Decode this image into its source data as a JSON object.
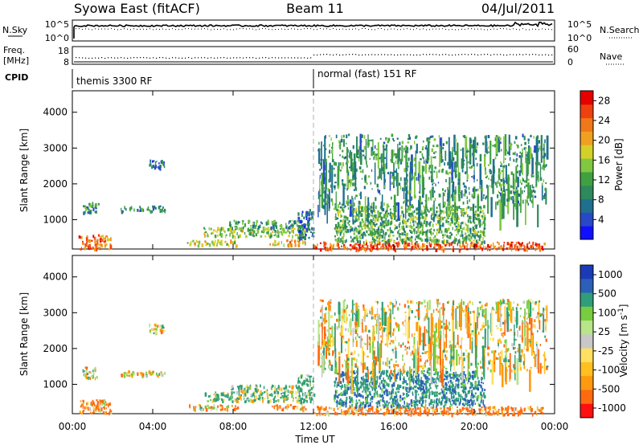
{
  "header": {
    "left_title": "Syowa East (fitACF)",
    "center_title": "Beam 11",
    "right_title": "04/Jul/2011"
  },
  "noise_panel": {
    "left_label": "N.Sky",
    "left_ticks": [
      "10^5",
      "10^0"
    ],
    "right_label": "N.Search",
    "right_ticks": [
      "10^5",
      "10^0"
    ],
    "right_legend_style": "dotted"
  },
  "freq_panel": {
    "left_label_1": "Freq.",
    "left_label_2": "[MHz]",
    "left_ticks": [
      "18",
      "8"
    ],
    "right_label": "Nave",
    "right_ticks": [
      "60",
      "0"
    ],
    "right_legend_style": "dotted"
  },
  "cpid_panel": {
    "label": "CPID",
    "segments": [
      "themis 3300 RF",
      "normal (fast) 151 RF"
    ]
  },
  "colors": {
    "power_scale": [
      "#1010ff",
      "#2848c8",
      "#1f6f8f",
      "#2e8a5c",
      "#3fa040",
      "#7fc840",
      "#d4d02a",
      "#f0a020",
      "#f07818",
      "#ef4010",
      "#e60000"
    ],
    "velocity_scale": [
      "#ff1010",
      "#ff6a10",
      "#ff9a10",
      "#ffc020",
      "#ffe060",
      "#c8c8c8",
      "#b8e48a",
      "#78cc40",
      "#2f9e7a",
      "#2c5fb8",
      "#1b3ab8"
    ],
    "ground_scatter": "#a0a0a0"
  },
  "chart_data": [
    {
      "type": "heatmap",
      "title": "Power",
      "xlabel": "Time UT",
      "ylabel": "Slant Range [km]",
      "x_tick_labels": [
        "00:00",
        "04:00",
        "08:00",
        "12:00",
        "16:00",
        "20:00",
        "00:00"
      ],
      "y_ticks": [
        1000,
        2000,
        3000,
        4000
      ],
      "xlim": [
        0,
        24
      ],
      "ylim": [
        180,
        4600
      ],
      "colorbar": {
        "label": "Power [dB]",
        "ticks": [
          4,
          8,
          12,
          16,
          20,
          24,
          28
        ],
        "range": [
          0,
          30
        ]
      },
      "mode_change_time": 12.0,
      "regions": [
        {
          "t0": 0.3,
          "t1": 1.9,
          "r0": 200,
          "r1": 600,
          "value": 24
        },
        {
          "t0": 0.5,
          "t1": 1.3,
          "r0": 1200,
          "r1": 1500,
          "value": 10
        },
        {
          "t0": 2.4,
          "t1": 4.6,
          "r0": 1250,
          "r1": 1400,
          "value": 8
        },
        {
          "t0": 3.8,
          "t1": 4.6,
          "r0": 2450,
          "r1": 2700,
          "value": 6
        },
        {
          "t0": 5.7,
          "t1": 8.2,
          "r0": 300,
          "r1": 450,
          "value": 18
        },
        {
          "t0": 6.5,
          "t1": 11.6,
          "r0": 550,
          "r1": 800,
          "value": 14
        },
        {
          "t0": 7.8,
          "t1": 11.4,
          "r0": 800,
          "r1": 1000,
          "value": 10
        },
        {
          "t0": 9.8,
          "t1": 11.6,
          "r0": 300,
          "r1": 450,
          "value": 20
        },
        {
          "t0": 11.2,
          "t1": 12.0,
          "r0": 500,
          "r1": 1300,
          "value": 6
        },
        {
          "t0": 12.0,
          "t1": 23.5,
          "r0": 180,
          "r1": 400,
          "value": 26
        },
        {
          "t0": 13.0,
          "t1": 20.5,
          "r0": 400,
          "r1": 1400,
          "value": 12
        },
        {
          "t0": 12.2,
          "t1": 23.6,
          "r0": 1400,
          "r1": 3400,
          "value": 10
        }
      ]
    },
    {
      "type": "heatmap",
      "title": "Velocity",
      "xlabel": "Time UT",
      "ylabel": "Slant Range [km]",
      "x_tick_labels": [
        "00:00",
        "04:00",
        "08:00",
        "12:00",
        "16:00",
        "20:00",
        "00:00"
      ],
      "y_ticks": [
        1000,
        2000,
        3000,
        4000
      ],
      "xlim": [
        0,
        24
      ],
      "ylim": [
        180,
        4600
      ],
      "colorbar": {
        "label": "Velocity [m s^-1]",
        "ticks": [
          "1000",
          "500",
          "100",
          "25",
          "-25",
          "-100",
          "-500",
          "-1000"
        ],
        "range": [
          -1000,
          1000
        ]
      },
      "mode_change_time": 12.0,
      "regions": [
        {
          "t0": 0.3,
          "t1": 1.9,
          "r0": 200,
          "r1": 600,
          "value": -150
        },
        {
          "t0": 0.5,
          "t1": 1.3,
          "r0": 1200,
          "r1": 1500,
          "value": 0
        },
        {
          "t0": 2.4,
          "t1": 4.6,
          "r0": 1250,
          "r1": 1400,
          "value": 0
        },
        {
          "t0": 3.8,
          "t1": 4.6,
          "r0": 2450,
          "r1": 2700,
          "value": 0
        },
        {
          "t0": 5.7,
          "t1": 8.2,
          "r0": 300,
          "r1": 450,
          "value": -80
        },
        {
          "t0": 6.5,
          "t1": 11.6,
          "r0": 550,
          "r1": 800,
          "value": 120
        },
        {
          "t0": 7.8,
          "t1": 11.4,
          "r0": 800,
          "r1": 1000,
          "value": 100
        },
        {
          "t0": 9.8,
          "t1": 11.6,
          "r0": 300,
          "r1": 450,
          "value": -100
        },
        {
          "t0": 11.2,
          "t1": 12.0,
          "r0": 500,
          "r1": 1300,
          "value": 200
        },
        {
          "t0": 12.0,
          "t1": 23.5,
          "r0": 180,
          "r1": 400,
          "value": -200
        },
        {
          "t0": 13.0,
          "t1": 20.5,
          "r0": 400,
          "r1": 1400,
          "value": 400
        },
        {
          "t0": 12.2,
          "t1": 23.6,
          "r0": 1400,
          "r1": 3400,
          "value": 0
        }
      ]
    }
  ]
}
